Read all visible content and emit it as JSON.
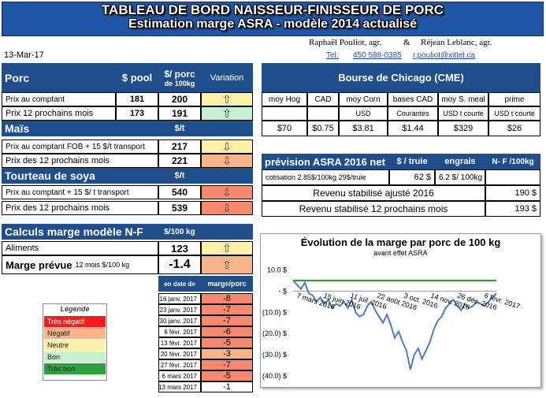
{
  "header": {
    "title": "TABLEAU DE BORD NAISSEUR-FINISSEUR DE PORC",
    "subtitle": "Estimation marge ASRA - modèle 2014 actualisé",
    "authors": "Raphaël Pouliot, agr.",
    "ampersand": "&",
    "author2": "Réjean Leblanc, agr.",
    "tel_label": "Tel:",
    "tel": "450 588-0385",
    "email": "r.pouliot@xittel.ca",
    "date": "13-Mar-17"
  },
  "porc": {
    "label": "Porc",
    "col1": "$ pool",
    "col2a": "$/ porc",
    "col2b": "de 100kg",
    "col3": "Variation",
    "rows": [
      {
        "label": "Prix au comptant",
        "pool": "181",
        "porc": "200",
        "arrow": "⇧",
        "color": "#fff2a8"
      },
      {
        "label": "Prix 12 prochains mois",
        "pool": "173",
        "porc": "191",
        "arrow": "⇧",
        "color": "#c6f0cf"
      }
    ]
  },
  "mais": {
    "label": "Maïs",
    "unit": "$/t",
    "rows": [
      {
        "label": "Prix au comptant FOB + 15 $/t transport",
        "value": "217",
        "arrow": "⇩",
        "color": "#fff2a8"
      },
      {
        "label": "Prix des 12 prochains mois",
        "value": "221",
        "arrow": "⇩",
        "color": "#f9b48a"
      }
    ]
  },
  "soya": {
    "label": "Tourteau de soya",
    "unit": "$/t",
    "rows": [
      {
        "label": "Prix au comptant + 15 $/ t transport",
        "value": "540",
        "arrow": "⇩",
        "color": "#f9896e"
      },
      {
        "label": "Prix des 12 prochains mois",
        "value": "539",
        "arrow": "⇩",
        "color": "#f9896e"
      }
    ]
  },
  "calculs": {
    "label": "Calculs marge  modèle N-F",
    "unit": "$/100 kg",
    "aliments_label": "Aliments",
    "aliments_value": "123",
    "aliments_arrow": "⇧",
    "marge_label": "Marge prévue",
    "marge_sub": "12 mois  $/100 kg",
    "marge_value": "-1.4",
    "marge_arrow": "⇧"
  },
  "history": {
    "col_date": "en date de",
    "col_marge": "marge/porc",
    "rows": [
      {
        "date": "16 janv. 2017",
        "value": "-8",
        "color": "#f9896e"
      },
      {
        "date": "23 janv. 2017",
        "value": "-7",
        "color": "#f9896e"
      },
      {
        "date": "30 janv. 2017",
        "value": "-7",
        "color": "#f9896e"
      },
      {
        "date": "6 févr. 2017",
        "value": "-6",
        "color": "#f9896e"
      },
      {
        "date": "13 févr. 2017",
        "value": "-5",
        "color": "#f9896e"
      },
      {
        "date": "20 févr. 2017",
        "value": "-3",
        "color": "#f9b48a"
      },
      {
        "date": "27 févr. 2017",
        "value": "-7",
        "color": "#f9896e"
      },
      {
        "date": "6 mars 2017",
        "value": "-5",
        "color": "#f9896e"
      },
      {
        "date": "13 mars 2017",
        "value": "-1",
        "color": "#ffffff"
      }
    ]
  },
  "legend": {
    "title": "Légende",
    "items": [
      {
        "label": "Très négatif",
        "color": "#ff1a1a"
      },
      {
        "label": "Négatif",
        "color": "#f9b48a"
      },
      {
        "label": "Neutre",
        "color": "#fff2a8"
      },
      {
        "label": "Bon",
        "color": "#c6f0cf"
      },
      {
        "label": "Très bon",
        "color": "#27a33a"
      }
    ]
  },
  "cme": {
    "title": "Bourse de Chicago (CME)",
    "cols": [
      {
        "h": "moy Hog",
        "u": "",
        "v": "$70"
      },
      {
        "h": "CAD",
        "u": "",
        "v": "$0.75"
      },
      {
        "h": "moy Corn",
        "u": "USD",
        "v": "$3.81"
      },
      {
        "h": "bases CAD",
        "u": "Courantes",
        "v": "$1.44"
      },
      {
        "h": "moy S. meal",
        "u": "USD t courte",
        "v": "$329"
      },
      {
        "h": "prime",
        "u": "USD t courte",
        "v": "$26"
      }
    ]
  },
  "asra": {
    "title": "prévision ASRA 2016 net",
    "col_truie": "$ / truie",
    "col_engrais": "engrais",
    "col_nf": "N- F /100kg",
    "cotisation_label": "cotisation 2.85$/100kg  29$/truie",
    "truie_value": "62  $",
    "engrais_value": "6.2  $/ 100kg",
    "revenu1_label": "Revenu stabilisé ajusté 2016",
    "revenu1_value": "190  $",
    "revenu2_label": "Revenu stabilisé 12 prochains mois",
    "revenu2_value": "193  $"
  },
  "chart_data": {
    "type": "line",
    "title": "Évolution de la marge par porc de 100 kg",
    "subtitle": "avant effet ASRA",
    "y_ticks": [
      "10.0  $",
      "-  $",
      "(10.0) $",
      "(20.0) $",
      "(30.0) $",
      "(40.0) $"
    ],
    "ylim": [
      -40,
      15
    ],
    "x_ticks": [
      "7 mars 2016",
      "15 juin 2016",
      "11 juil. 2016",
      "22 août 2016",
      "3 oct. 2016",
      "14 nov. 2016",
      "26 déc. 2016",
      "6 févr. 2017"
    ],
    "reference_line": {
      "value": 5,
      "color": "#1a9b2c"
    },
    "series": [
      {
        "color": "#4a7cc1",
        "values": [
          5,
          3,
          1,
          4,
          -1,
          -2,
          -5,
          -3,
          -6,
          -4,
          -8,
          -6,
          -7,
          -5,
          -8,
          -4,
          -10,
          -12,
          -11,
          -7,
          -5,
          -9,
          -12,
          -15,
          -11,
          -16,
          -22,
          -19,
          -24,
          -28,
          -37,
          -30,
          -27,
          -32,
          -28,
          -24,
          -18,
          -14,
          -12,
          -8,
          -6,
          -4,
          -7,
          -9,
          -6,
          -8,
          -7,
          -5,
          -6,
          -7,
          -5,
          -3,
          -1
        ]
      }
    ]
  }
}
